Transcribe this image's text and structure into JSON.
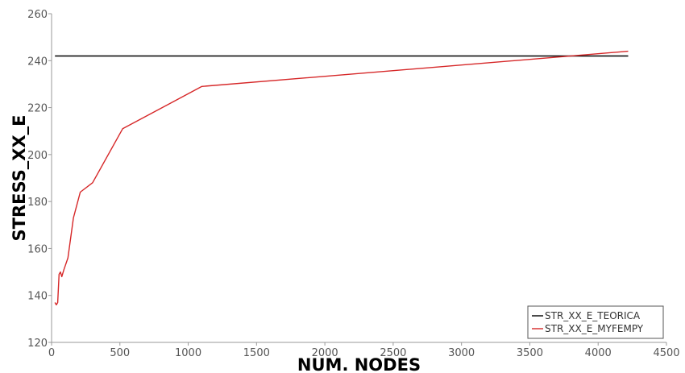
{
  "chart_data": {
    "type": "line",
    "xlabel": "NUM. NODES",
    "ylabel": "STRESS_XX_E",
    "xlim": [
      0,
      4500
    ],
    "ylim": [
      120,
      260
    ],
    "x_ticks": [
      0,
      500,
      1000,
      1500,
      2000,
      2500,
      3000,
      3500,
      4000,
      4500
    ],
    "y_ticks": [
      120,
      140,
      160,
      180,
      200,
      220,
      240,
      260
    ],
    "grid": false,
    "legend_position": "bottom-right",
    "series": [
      {
        "name": "STR_XX_E_TEORICA",
        "color": "#000000",
        "x": [
          25,
          4220
        ],
        "y": [
          242,
          242
        ]
      },
      {
        "name": "STR_XX_E_MYFEMPY",
        "color": "#d62728",
        "x": [
          25,
          35,
          45,
          55,
          65,
          75,
          90,
          120,
          160,
          210,
          300,
          520,
          1100,
          4220
        ],
        "y": [
          137,
          136,
          137,
          149,
          150,
          148,
          151,
          156,
          173,
          184,
          188,
          211,
          229,
          244
        ]
      }
    ]
  }
}
